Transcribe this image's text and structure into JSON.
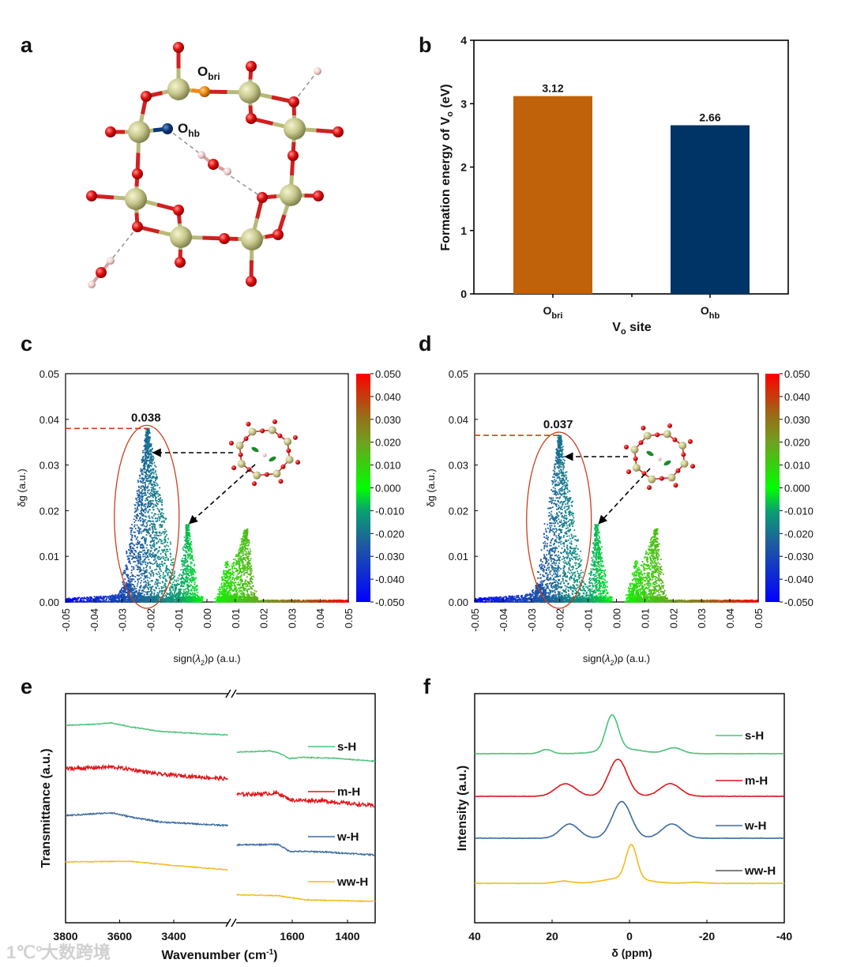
{
  "panels": {
    "a": "a",
    "b": "b",
    "c": "c",
    "d": "d",
    "e": "e",
    "f": "f"
  },
  "molecule": {
    "label_obri": {
      "main": "O",
      "sub": "bri"
    },
    "label_ohb": {
      "main": "O",
      "sub": "hb"
    },
    "colors": {
      "si": "#c9c98f",
      "o": "#e01010",
      "o_bri": "#f08a10",
      "o_hb": "#0d3a78",
      "h": "#ecc9c9"
    }
  },
  "watermark": {
    "text": "大数跨境",
    "logo": "1℃°"
  },
  "chart_data": [
    {
      "id": "b",
      "type": "bar",
      "categories": [
        {
          "main": "O",
          "sub": "bri"
        },
        {
          "main": "O",
          "sub": "hb"
        }
      ],
      "values": [
        3.12,
        2.66
      ],
      "value_labels": [
        "3.12",
        "2.66"
      ],
      "colors": [
        "#c0620a",
        "#003366"
      ],
      "ylabel": {
        "pre": "Formation energy of V",
        "sub": "o",
        "post": " (eV)"
      },
      "xlabel": {
        "pre": "V",
        "sub": "o",
        "post": " site"
      },
      "ylim": [
        0,
        4
      ],
      "yticks": [
        "0",
        "1",
        "2",
        "3",
        "4"
      ]
    },
    {
      "id": "c",
      "type": "scatter",
      "xlabel": {
        "pre": "sign(",
        "lam": "λ",
        "sub": "2",
        "post": ")ρ (a.u.)"
      },
      "ylabel": "δg (a.u.)",
      "xlim": [
        -0.05,
        0.05
      ],
      "ylim": [
        0,
        0.05
      ],
      "xticks": [
        "-0.05",
        "-0.04",
        "-0.03",
        "-0.02",
        "-0.01",
        "0.00",
        "0.01",
        "0.02",
        "0.03",
        "0.04",
        "0.05"
      ],
      "yticks": [
        "0.00",
        "0.01",
        "0.02",
        "0.03",
        "0.04",
        "0.05"
      ],
      "colorbar": {
        "range": [
          -0.05,
          0.05
        ],
        "ticks": [
          "0.050",
          "0.040",
          "0.030",
          "0.020",
          "0.010",
          "0.000",
          "-0.010",
          "-0.020",
          "-0.030",
          "-0.040",
          "-0.050"
        ]
      },
      "annotation": {
        "text": "0.038",
        "x": -0.021,
        "y": 0.038
      },
      "spikes": [
        {
          "center": -0.021,
          "peak": 0.038,
          "left": -0.031,
          "right": -0.009,
          "n": 1900
        },
        {
          "center": -0.028,
          "peak": 0.004,
          "left": -0.035,
          "right": -0.02,
          "n": 250
        },
        {
          "center": -0.007,
          "peak": 0.017,
          "left": -0.0105,
          "right": -0.0025,
          "n": 550
        },
        {
          "center": 0.014,
          "peak": 0.016,
          "left": 0.004,
          "right": 0.0175,
          "n": 800
        },
        {
          "center": 0.007,
          "peak": 0.009,
          "left": 0.003,
          "right": 0.011,
          "n": 250
        }
      ]
    },
    {
      "id": "d",
      "type": "scatter",
      "xlabel": {
        "pre": "sign(",
        "lam": "λ",
        "sub": "2",
        "post": ")ρ (a.u.)"
      },
      "ylabel": "δg (a.u.)",
      "xlim": [
        -0.05,
        0.05
      ],
      "ylim": [
        0,
        0.05
      ],
      "xticks": [
        "-0.05",
        "-0.04",
        "-0.03",
        "-0.02",
        "-0.01",
        "0.00",
        "0.01",
        "0.02",
        "0.03",
        "0.04",
        "0.05"
      ],
      "yticks": [
        "0.00",
        "0.01",
        "0.02",
        "0.03",
        "0.04",
        "0.05"
      ],
      "colorbar": {
        "range": [
          -0.05,
          0.05
        ],
        "ticks": [
          "0.050",
          "0.040",
          "0.030",
          "0.020",
          "0.010",
          "0.000",
          "-0.010",
          "-0.020",
          "-0.030",
          "-0.040",
          "-0.050"
        ]
      },
      "annotation": {
        "text": "0.037",
        "x": -0.02,
        "y": 0.0365
      },
      "spikes": [
        {
          "center": -0.02,
          "peak": 0.0365,
          "left": -0.029,
          "right": -0.01,
          "n": 1500
        },
        {
          "center": -0.027,
          "peak": 0.004,
          "left": -0.035,
          "right": -0.02,
          "n": 250
        },
        {
          "center": -0.007,
          "peak": 0.017,
          "left": -0.0105,
          "right": -0.0025,
          "n": 550
        },
        {
          "center": 0.014,
          "peak": 0.016,
          "left": 0.004,
          "right": 0.0175,
          "n": 800
        },
        {
          "center": 0.007,
          "peak": 0.009,
          "left": 0.003,
          "right": 0.011,
          "n": 250
        }
      ]
    },
    {
      "id": "e",
      "type": "line",
      "xlabel": {
        "pre": "Wavenumber (cm",
        "sup": "-1",
        "post": ")"
      },
      "ylabel": "Transmittance (a.u.)",
      "xlim_left": [
        3800,
        3200
      ],
      "xlim_right": [
        1800,
        1300
      ],
      "ylim": [
        0,
        10
      ],
      "xticks_left": [
        "3800",
        "3600",
        "3400"
      ],
      "xticks_right": [
        "1600",
        "1400"
      ],
      "series": [
        {
          "name": "s-H",
          "color": "#4cc07a",
          "noise": 0.02,
          "left": [
            [
              3800,
              8.62
            ],
            [
              3700,
              8.66
            ],
            [
              3630,
              8.72
            ],
            [
              3560,
              8.55
            ],
            [
              3450,
              8.35
            ],
            [
              3300,
              8.25
            ],
            [
              3200,
              8.2
            ]
          ],
          "right": [
            [
              1800,
              7.45
            ],
            [
              1680,
              7.5
            ],
            [
              1650,
              7.42
            ],
            [
              1610,
              7.17
            ],
            [
              1560,
              7.22
            ],
            [
              1450,
              7.18
            ],
            [
              1300,
              7.05
            ]
          ]
        },
        {
          "name": "m-H",
          "color": "#e0151b",
          "noise": 0.08,
          "left": [
            [
              3800,
              6.72
            ],
            [
              3630,
              6.8
            ],
            [
              3560,
              6.7
            ],
            [
              3450,
              6.48
            ],
            [
              3200,
              6.28
            ]
          ],
          "right": [
            [
              1800,
              5.6
            ],
            [
              1650,
              5.65
            ],
            [
              1620,
              5.45
            ],
            [
              1600,
              5.35
            ],
            [
              1500,
              5.33
            ],
            [
              1300,
              5.1
            ]
          ]
        },
        {
          "name": "w-H",
          "color": "#3a6a9e",
          "noise": 0.03,
          "left": [
            [
              3800,
              4.68
            ],
            [
              3630,
              4.8
            ],
            [
              3560,
              4.62
            ],
            [
              3450,
              4.4
            ],
            [
              3200,
              4.24
            ]
          ],
          "right": [
            [
              1800,
              3.4
            ],
            [
              1650,
              3.42
            ],
            [
              1610,
              3.12
            ],
            [
              1500,
              3.1
            ],
            [
              1300,
              2.96
            ]
          ]
        },
        {
          "name": "ww-H",
          "color": "#f2bb1d",
          "noise": 0.02,
          "left": [
            [
              3800,
              2.66
            ],
            [
              3560,
              2.68
            ],
            [
              3400,
              2.5
            ],
            [
              3200,
              2.31
            ]
          ],
          "right": [
            [
              1800,
              1.22
            ],
            [
              1650,
              1.18
            ],
            [
              1550,
              1.0
            ],
            [
              1300,
              0.93
            ]
          ]
        }
      ],
      "legend": "right"
    },
    {
      "id": "f",
      "type": "line",
      "xlabel": "δ (ppm)",
      "ylabel": "Intensity (a.u.)",
      "xlim": [
        40,
        -40
      ],
      "ylim": [
        0,
        10
      ],
      "xticks": [
        "40",
        "20",
        "0",
        "-20",
        "-40"
      ],
      "series": [
        {
          "name": "s-H",
          "color": "#4cc07a",
          "legend_color": "#4cc07a",
          "baseline": 7.38,
          "peaks": [
            {
              "center": 4.5,
              "height": 1.5,
              "width": 1.6
            },
            {
              "center": 2,
              "height": 0.22,
              "width": 5
            },
            {
              "center": 21.5,
              "height": 0.18,
              "width": 1.5
            },
            {
              "center": -11.5,
              "height": 0.25,
              "width": 2.2
            }
          ]
        },
        {
          "name": "m-H",
          "color": "#e0151b",
          "legend_color": "#e0151b",
          "baseline": 5.52,
          "peaks": [
            {
              "center": 3,
              "height": 1.62,
              "width": 2.4
            },
            {
              "center": 16.5,
              "height": 0.55,
              "width": 2.6
            },
            {
              "center": -10.5,
              "height": 0.55,
              "width": 2.6
            }
          ]
        },
        {
          "name": "w-H",
          "color": "#3a6a9e",
          "legend_color": "#3a6a9e",
          "baseline": 3.69,
          "peaks": [
            {
              "center": 2,
              "height": 1.6,
              "width": 2.4
            },
            {
              "center": 15.5,
              "height": 0.62,
              "width": 2.4
            },
            {
              "center": -11,
              "height": 0.62,
              "width": 2.6
            }
          ]
        },
        {
          "name": "ww-H",
          "color": "#f2bb1d",
          "legend_color": "#555555",
          "baseline": 1.72,
          "peaks": [
            {
              "center": -0.5,
              "height": 1.45,
              "width": 1.4
            },
            {
              "center": 1,
              "height": 0.25,
              "width": 5
            },
            {
              "center": 17,
              "height": 0.1,
              "width": 2
            },
            {
              "center": -17,
              "height": 0.05,
              "width": 2
            }
          ]
        }
      ],
      "legend": "right"
    }
  ]
}
